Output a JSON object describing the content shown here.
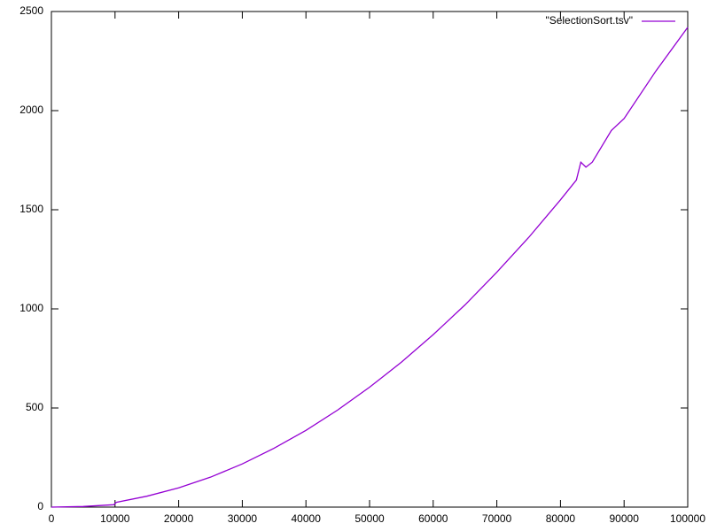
{
  "chart_data": {
    "type": "line",
    "x": [
      0,
      5000,
      9800,
      10200,
      15000,
      20000,
      25000,
      30000,
      35000,
      40000,
      45000,
      50000,
      52000,
      55000,
      60000,
      61500,
      65000,
      70000,
      75000,
      80000,
      82500,
      83200,
      84000,
      85000,
      88000,
      90000,
      95000,
      100000
    ],
    "series": [
      {
        "name": "\"SelectionSort.tsv\"",
        "color": "#9400d3",
        "values": [
          0,
          3,
          12,
          24,
          55,
          97,
          151,
          218,
          297,
          387,
          490,
          605,
          655,
          731,
          870,
          915,
          1020,
          1185,
          1360,
          1550,
          1650,
          1740,
          1715,
          1740,
          1900,
          1960,
          2200,
          2420
        ]
      }
    ],
    "xlim": [
      0,
      100000
    ],
    "xticks": [
      0,
      10000,
      20000,
      30000,
      40000,
      50000,
      60000,
      70000,
      80000,
      90000,
      100000
    ],
    "ylim": [
      0,
      2500
    ],
    "yticks": [
      0,
      500,
      1000,
      1500,
      2000,
      2500
    ],
    "legend": "top-right",
    "grid": false
  }
}
